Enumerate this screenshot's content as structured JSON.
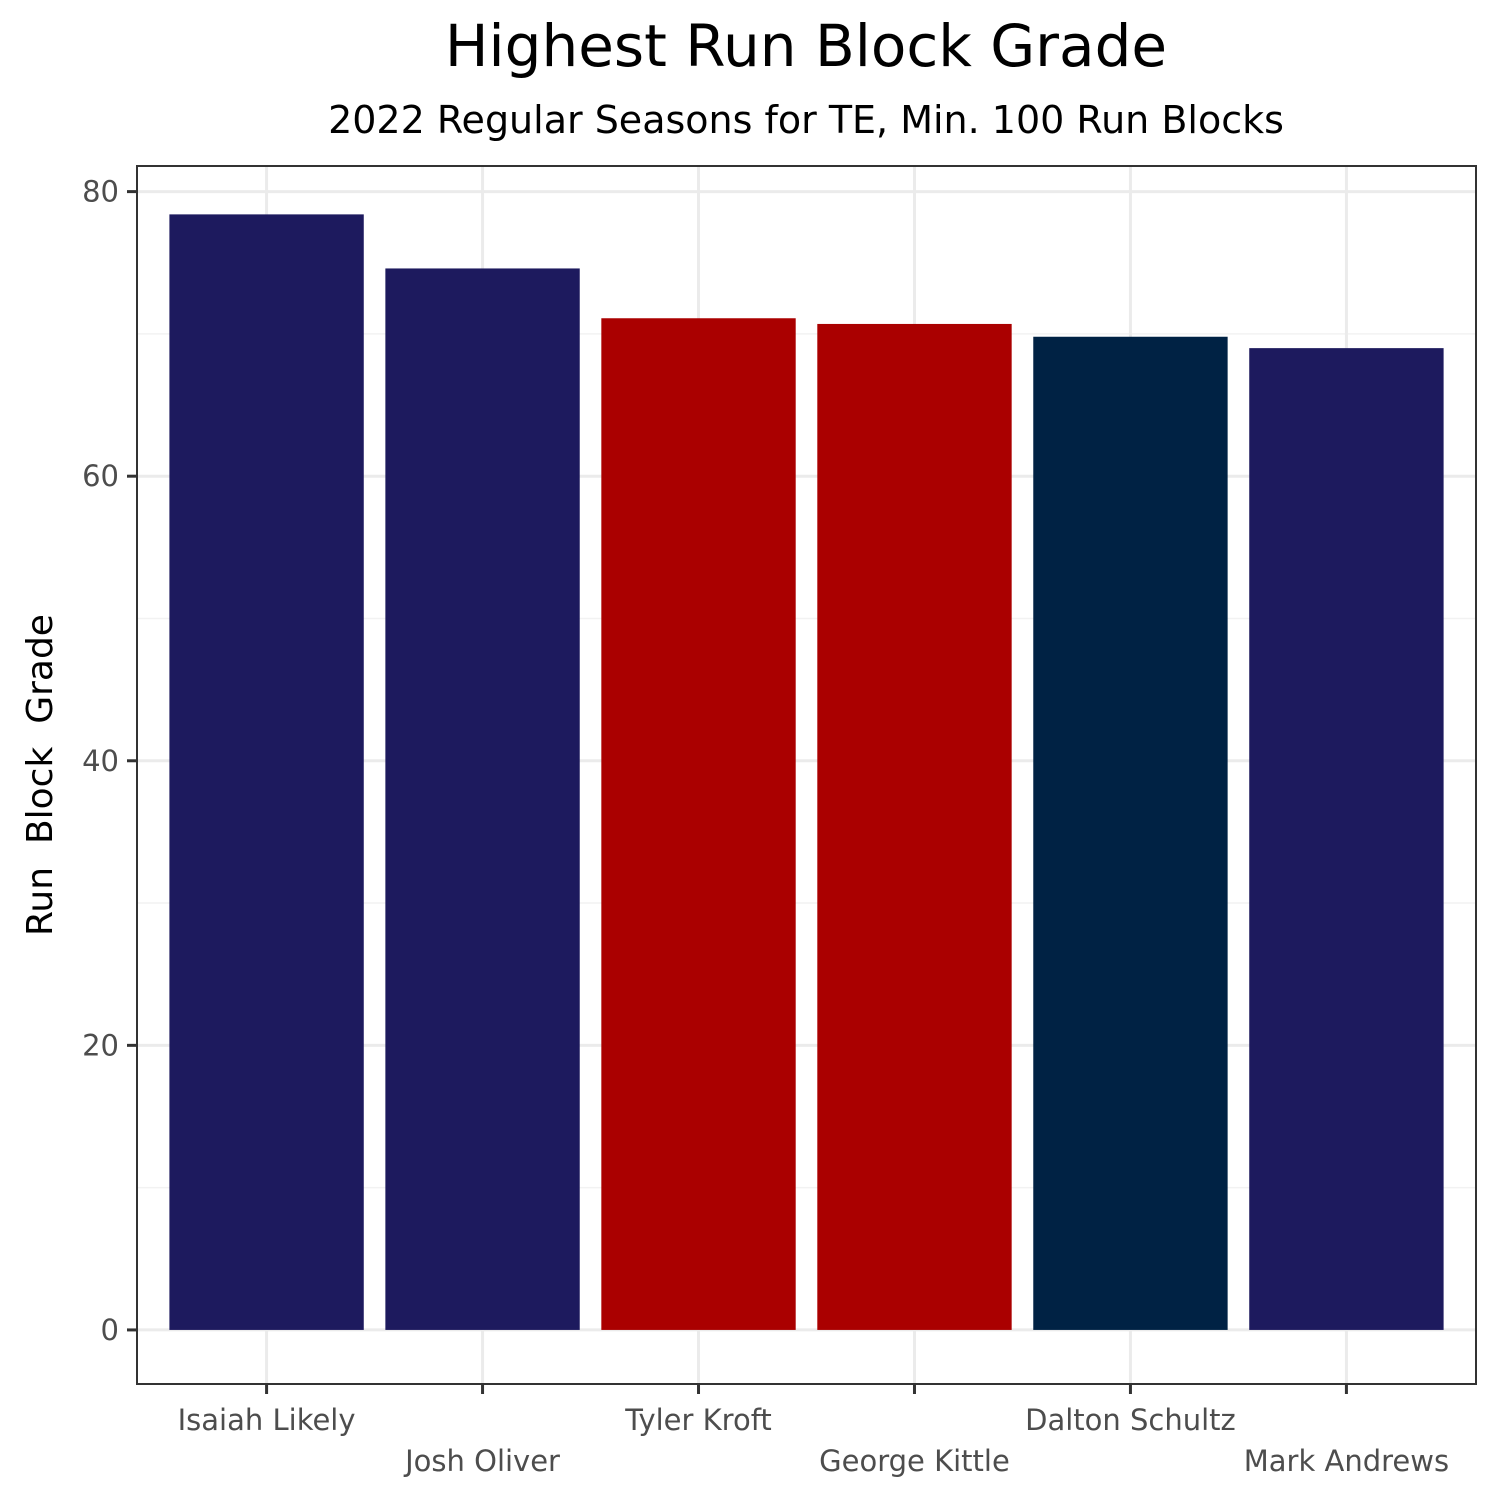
{
  "chart_data": {
    "type": "bar",
    "title": "Highest Run Block Grade",
    "subtitle": "2022 Regular Seasons for TE, Min. 100 Run Blocks",
    "xlabel": "",
    "ylabel": "Run  Block  Grade",
    "categories": [
      "Isaiah Likely",
      "Josh Oliver",
      "Tyler Kroft",
      "George Kittle",
      "Dalton Schultz",
      "Mark Andrews"
    ],
    "values": [
      78.4,
      74.6,
      71.1,
      70.7,
      69.8,
      69.0
    ],
    "bar_colors": [
      "#1d1a5e",
      "#1d1a5e",
      "#aa0000",
      "#aa0000",
      "#002244",
      "#1d1a5e"
    ],
    "ylim": [
      -3.8,
      81.8
    ],
    "y_ticks": [
      0,
      20,
      40,
      60,
      80
    ],
    "grid": true
  }
}
